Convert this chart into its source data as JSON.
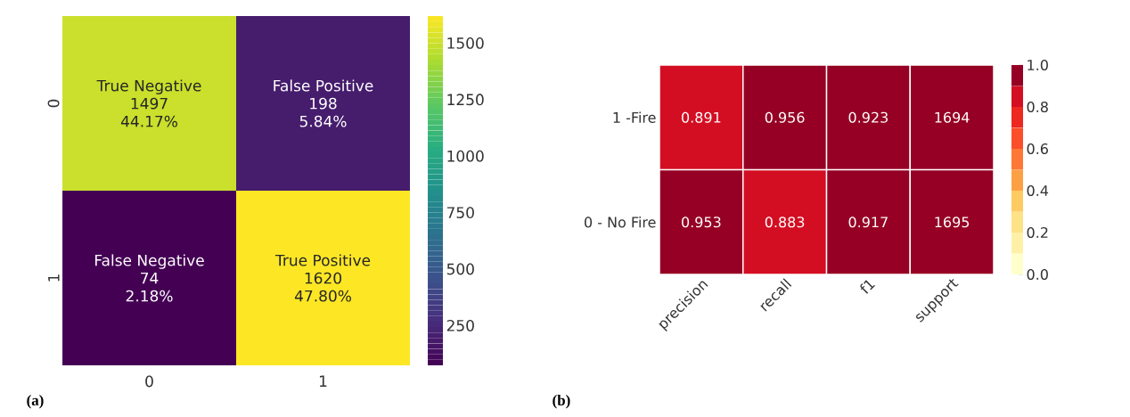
{
  "chart_data": [
    {
      "type": "heatmap",
      "categories": [
        "0",
        "1"
      ],
      "y_categories": [
        "0",
        "1"
      ],
      "cells": [
        [
          1497,
          198
        ],
        [
          74,
          1620
        ]
      ],
      "cell_labels": [
        [
          "True Negative\n1497\n44.17%",
          "False Positive\n198\n5.84%"
        ],
        [
          "False Negative\n74\n2.18%",
          "True Positive\n1620\n47.80%"
        ]
      ],
      "clim": [
        74,
        1620
      ],
      "cticks": [
        250,
        500,
        750,
        1000,
        1250,
        1500
      ],
      "annotations": [
        "(a)"
      ]
    },
    {
      "type": "heatmap",
      "categories": [
        "precision",
        "recall",
        "f1",
        "support"
      ],
      "y_categories": [
        "1 -Fire",
        "0 - No Fire"
      ],
      "cells": [
        [
          0.891,
          0.956,
          0.923,
          1694
        ],
        [
          0.953,
          0.883,
          0.917,
          1695
        ]
      ],
      "data_labels": true,
      "clim": [
        0,
        1
      ],
      "cticks": [
        {
          "value": 0,
          "label": "0.0"
        },
        {
          "value": 0.2,
          "label": "0.2"
        },
        {
          "value": 0.4,
          "label": "0.4"
        },
        {
          "value": 0.6,
          "label": "0.6"
        },
        {
          "value": 0.8,
          "label": "0.8"
        },
        {
          "value": 1,
          "label": "1.0"
        }
      ],
      "annotations": [
        "(b)"
      ]
    }
  ]
}
